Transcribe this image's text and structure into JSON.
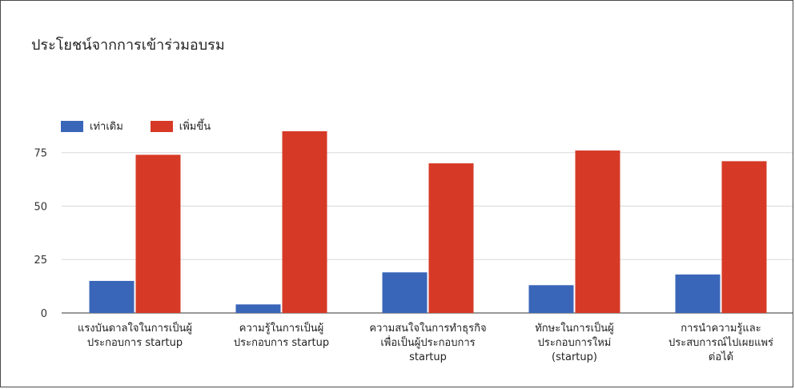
{
  "chart_data": {
    "type": "bar",
    "title": "ประโยชน์จากการเข้าร่วมอบรม",
    "xlabel": "",
    "ylabel": "",
    "ylim": [
      0,
      85
    ],
    "yticks": [
      0,
      25,
      50,
      75
    ],
    "grid": true,
    "legend_position": "top-left",
    "categories": [
      [
        "แรงบันดาลใจในการเป็นผู้",
        "ประกอบการ startup"
      ],
      [
        "ความรู้ในการเป็นผู้",
        "ประกอบการ startup"
      ],
      [
        "ความสนใจในการทำธุรกิจ",
        "เพื่อเป็นผู้ประกอบการ",
        "startup"
      ],
      [
        "ทักษะในการเป็นผู้",
        "ประกอบการใหม่",
        "(startup)"
      ],
      [
        "การนำความรู้และ",
        "ประสบการณ์ไปเผยแพร่",
        "ต่อได้"
      ]
    ],
    "series": [
      {
        "name": "เท่าเดิม",
        "color": "#3a66b9",
        "values": [
          15,
          4,
          19,
          13,
          18
        ]
      },
      {
        "name": "เพิ่มขึ้น",
        "color": "#d63a26",
        "values": [
          74,
          85,
          70,
          76,
          71
        ]
      }
    ]
  }
}
